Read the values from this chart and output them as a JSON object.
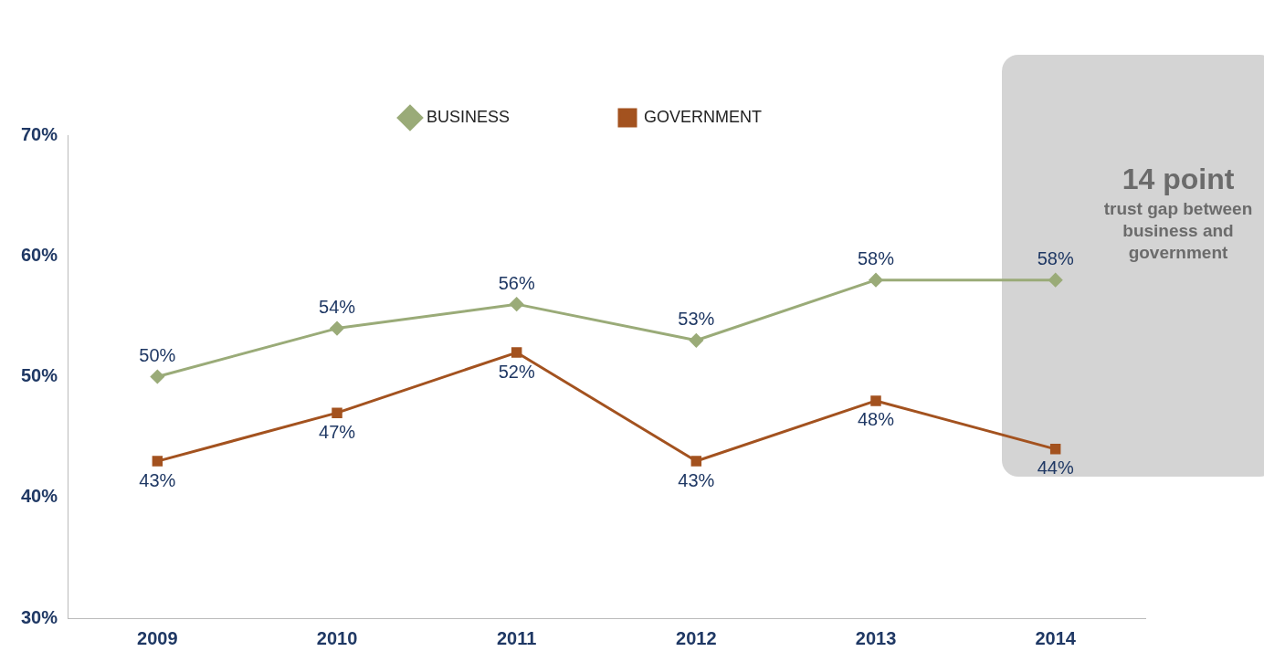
{
  "chart_data": {
    "type": "line",
    "categories": [
      "2009",
      "2010",
      "2011",
      "2012",
      "2013",
      "2014"
    ],
    "series": [
      {
        "name": "BUSINESS",
        "color": "#9aab78",
        "values": [
          50,
          54,
          56,
          53,
          58,
          58
        ],
        "marker": "diamond"
      },
      {
        "name": "GOVERNMENT",
        "color": "#a3521f",
        "values": [
          43,
          47,
          52,
          43,
          48,
          44
        ],
        "marker": "square"
      }
    ],
    "ylim": [
      30,
      70
    ],
    "yticks": [
      {
        "value": 30,
        "label": "30%"
      },
      {
        "value": 40,
        "label": "40%"
      },
      {
        "value": 50,
        "label": "50%"
      },
      {
        "value": 60,
        "label": "60%"
      },
      {
        "value": 70,
        "label": "70%"
      }
    ],
    "value_labels": [
      [
        "50%",
        "54%",
        "56%",
        "53%",
        "58%",
        "58%"
      ],
      [
        "43%",
        "47%",
        "52%",
        "43%",
        "48%",
        "44%"
      ]
    ],
    "grid": false,
    "legend": "top",
    "line_style": "solid",
    "annotations": [
      "14 point",
      "trust gap between business and government"
    ]
  }
}
